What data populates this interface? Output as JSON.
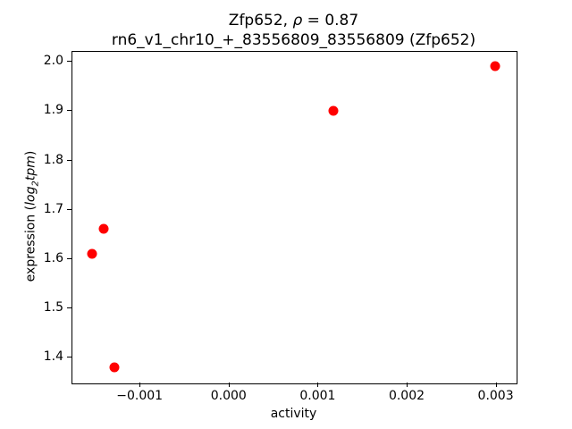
{
  "chart_data": {
    "type": "scatter",
    "title": "Zfp652, ρ = 0.87",
    "title_parts": {
      "gene": "Zfp652",
      "sep": ", ",
      "rho": "ρ",
      "eq": " = 0.87"
    },
    "subtitle": "rn6_v1_chr10_+_83556809_83556809 (Zfp652)",
    "rho": 0.87,
    "xlabel": "activity",
    "ylabel": "expression (log₂tpm)",
    "ylabel_parts": {
      "pre": "expression (",
      "log": "log",
      "sub": "2",
      "tpm": "tpm",
      "post": ")"
    },
    "marker_color": "#ff0000",
    "text_color": "#000000",
    "background_color": "#ffffff",
    "grid": false,
    "legend_position": null,
    "xlim": [
      -0.00176,
      0.00322
    ],
    "ylim": [
      1.3495,
      2.0205
    ],
    "xticks": [
      {
        "value": -0.001,
        "label": "−0.001"
      },
      {
        "value": 0.0,
        "label": "0.000"
      },
      {
        "value": 0.001,
        "label": "0.001"
      },
      {
        "value": 0.002,
        "label": "0.002"
      },
      {
        "value": 0.003,
        "label": "0.003"
      }
    ],
    "yticks": [
      {
        "value": 1.4,
        "label": "1.4"
      },
      {
        "value": 1.5,
        "label": "1.5"
      },
      {
        "value": 1.6,
        "label": "1.6"
      },
      {
        "value": 1.7,
        "label": "1.7"
      },
      {
        "value": 1.8,
        "label": "1.8"
      },
      {
        "value": 1.9,
        "label": "1.9"
      },
      {
        "value": 2.0,
        "label": "2.0"
      }
    ],
    "points": [
      {
        "x": -0.00153,
        "y": 1.61
      },
      {
        "x": -0.0014,
        "y": 1.66
      },
      {
        "x": -0.00128,
        "y": 1.38
      },
      {
        "x": 0.00118,
        "y": 1.9
      },
      {
        "x": 0.00299,
        "y": 1.99
      }
    ]
  }
}
